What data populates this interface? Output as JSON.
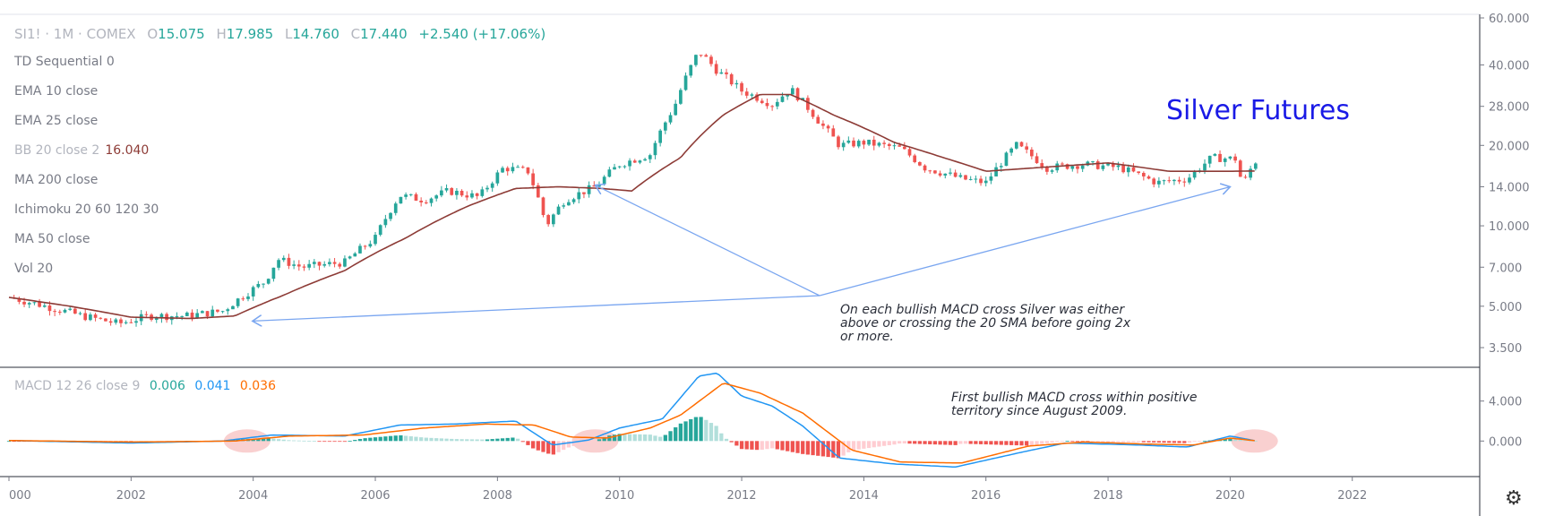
{
  "header": {
    "symbol": "SI1! · 1M · COMEX",
    "open_label": "O",
    "open": "15.075",
    "high_label": "H",
    "high": "17.985",
    "low_label": "L",
    "low": "14.760",
    "close_label": "C",
    "close": "17.440",
    "change": "+2.540 (+17.06%)"
  },
  "indicators": [
    {
      "label": "TD Sequential 0",
      "value": ""
    },
    {
      "label": "EMA 10 close",
      "value": ""
    },
    {
      "label": "EMA 25 close",
      "value": ""
    },
    {
      "label": "BB 20 close 2",
      "value": "16.040"
    },
    {
      "label": "MA 200 close",
      "value": ""
    },
    {
      "label": "Ichimoku 20 60 120 30",
      "value": ""
    },
    {
      "label": "MA 50 close",
      "value": ""
    },
    {
      "label": "Vol 20",
      "value": ""
    }
  ],
  "macd_legend": {
    "label": "MACD 12 26 close 9",
    "hist": "0.006",
    "macd": "0.041",
    "signal": "0.036"
  },
  "title_text": "Silver Futures",
  "note_main": [
    "On each bullish MACD cross Silver was either",
    "above or crossing the 20 SMA before going 2x",
    "or more."
  ],
  "note_macd": [
    "First bullish MACD cross within positive",
    "territory since August 2009."
  ],
  "colors": {
    "up": "#26a69a",
    "down": "#ef5350",
    "ma": "#8d3b36",
    "macd_line": "#2196f3",
    "signal_line": "#ff6d00",
    "hist_up_strong": "#26a69a",
    "hist_up_weak": "#b2dfdb",
    "hist_down_strong": "#ef5350",
    "hist_down_weak": "#ffcdd2",
    "arrow": "#7aa6f0",
    "title": "#1a1ae6",
    "highlight": "#f8c8c8"
  },
  "chart_data": [
    {
      "type": "candlestick",
      "title": "Silver Futures",
      "y_scale": "log",
      "y_ticks": [
        "60.000",
        "40.000",
        "28.000",
        "20.000",
        "14.000",
        "10.000",
        "7.000",
        "5.000",
        "3.500"
      ],
      "y_tick_values": [
        60,
        40,
        28,
        20,
        14,
        10,
        7,
        5,
        3.5
      ],
      "x_ticks": [
        "000",
        "2002",
        "2004",
        "2006",
        "2008",
        "2010",
        "2012",
        "2014",
        "2016",
        "2018",
        "2020",
        "2022"
      ],
      "x_range": [
        2000.0,
        2023.5
      ],
      "y_range": [
        3.0,
        60.0
      ],
      "price_path": [
        {
          "t": 2000.0,
          "v": 5.4
        },
        {
          "t": 2000.6,
          "v": 5.0
        },
        {
          "t": 2001.2,
          "v": 4.6
        },
        {
          "t": 2001.8,
          "v": 4.3
        },
        {
          "t": 2002.3,
          "v": 4.6
        },
        {
          "t": 2002.9,
          "v": 4.6
        },
        {
          "t": 2003.5,
          "v": 4.8
        },
        {
          "t": 2004.2,
          "v": 6.2
        },
        {
          "t": 2004.4,
          "v": 7.5
        },
        {
          "t": 2004.8,
          "v": 7.0
        },
        {
          "t": 2005.5,
          "v": 7.3
        },
        {
          "t": 2006.0,
          "v": 9.0
        },
        {
          "t": 2006.4,
          "v": 13.0
        },
        {
          "t": 2006.8,
          "v": 12.5
        },
        {
          "t": 2007.2,
          "v": 13.5
        },
        {
          "t": 2007.7,
          "v": 12.8
        },
        {
          "t": 2008.1,
          "v": 16.5
        },
        {
          "t": 2008.5,
          "v": 16.0
        },
        {
          "t": 2008.8,
          "v": 10.0
        },
        {
          "t": 2009.1,
          "v": 12.5
        },
        {
          "t": 2009.6,
          "v": 14.0
        },
        {
          "t": 2010.0,
          "v": 17.0
        },
        {
          "t": 2010.5,
          "v": 18.5
        },
        {
          "t": 2010.9,
          "v": 28.0
        },
        {
          "t": 2011.3,
          "v": 45.0
        },
        {
          "t": 2011.6,
          "v": 38.0
        },
        {
          "t": 2012.0,
          "v": 32.0
        },
        {
          "t": 2012.5,
          "v": 28.5
        },
        {
          "t": 2012.8,
          "v": 32.5
        },
        {
          "t": 2013.3,
          "v": 24.0
        },
        {
          "t": 2013.6,
          "v": 20.0
        },
        {
          "t": 2014.0,
          "v": 20.5
        },
        {
          "t": 2014.6,
          "v": 19.5
        },
        {
          "t": 2015.0,
          "v": 16.5
        },
        {
          "t": 2015.6,
          "v": 15.0
        },
        {
          "t": 2016.0,
          "v": 14.5
        },
        {
          "t": 2016.5,
          "v": 20.0
        },
        {
          "t": 2017.0,
          "v": 16.5
        },
        {
          "t": 2017.6,
          "v": 17.0
        },
        {
          "t": 2018.2,
          "v": 16.5
        },
        {
          "t": 2018.8,
          "v": 14.5
        },
        {
          "t": 2019.3,
          "v": 15.0
        },
        {
          "t": 2019.7,
          "v": 18.0
        },
        {
          "t": 2020.1,
          "v": 17.8
        },
        {
          "t": 2020.2,
          "v": 14.0
        },
        {
          "t": 2020.4,
          "v": 17.44
        }
      ],
      "ma_path": [
        {
          "t": 2000.0,
          "v": 5.4
        },
        {
          "t": 2001.0,
          "v": 5.0
        },
        {
          "t": 2002.0,
          "v": 4.55
        },
        {
          "t": 2003.0,
          "v": 4.5
        },
        {
          "t": 2003.7,
          "v": 4.6
        },
        {
          "t": 2004.5,
          "v": 5.5
        },
        {
          "t": 2005.5,
          "v": 6.8
        },
        {
          "t": 2006.5,
          "v": 9.0
        },
        {
          "t": 2007.5,
          "v": 11.8
        },
        {
          "t": 2008.3,
          "v": 13.8
        },
        {
          "t": 2009.0,
          "v": 14.0
        },
        {
          "t": 2009.7,
          "v": 13.8
        },
        {
          "t": 2010.2,
          "v": 13.5
        },
        {
          "t": 2011.0,
          "v": 18.0
        },
        {
          "t": 2011.7,
          "v": 26.0
        },
        {
          "t": 2012.3,
          "v": 31.0
        },
        {
          "t": 2012.8,
          "v": 31.0
        },
        {
          "t": 2013.5,
          "v": 26.0
        },
        {
          "t": 2014.5,
          "v": 20.5
        },
        {
          "t": 2015.3,
          "v": 18.0
        },
        {
          "t": 2016.0,
          "v": 16.0
        },
        {
          "t": 2017.0,
          "v": 16.6
        },
        {
          "t": 2018.0,
          "v": 17.2
        },
        {
          "t": 2019.0,
          "v": 16.0
        },
        {
          "t": 2020.0,
          "v": 16.0
        },
        {
          "t": 2020.4,
          "v": 16.04
        }
      ]
    },
    {
      "type": "line",
      "title": "MACD 12 26 close 9",
      "y_ticks": [
        "4.000",
        "0.000"
      ],
      "y_tick_values": [
        4,
        0
      ],
      "y_range": [
        -3.2,
        7.2
      ],
      "series": [
        {
          "name": "MACD",
          "points": [
            {
              "t": 2000.0,
              "v": 0.05
            },
            {
              "t": 2002.0,
              "v": -0.2
            },
            {
              "t": 2003.5,
              "v": 0.0
            },
            {
              "t": 2004.3,
              "v": 0.6
            },
            {
              "t": 2005.5,
              "v": 0.5
            },
            {
              "t": 2006.4,
              "v": 1.6
            },
            {
              "t": 2007.3,
              "v": 1.7
            },
            {
              "t": 2008.3,
              "v": 2.0
            },
            {
              "t": 2008.9,
              "v": -0.4
            },
            {
              "t": 2009.5,
              "v": 0.1
            },
            {
              "t": 2010.0,
              "v": 1.3
            },
            {
              "t": 2010.7,
              "v": 2.2
            },
            {
              "t": 2011.3,
              "v": 6.5
            },
            {
              "t": 2011.6,
              "v": 6.8
            },
            {
              "t": 2012.0,
              "v": 4.5
            },
            {
              "t": 2012.5,
              "v": 3.5
            },
            {
              "t": 2013.0,
              "v": 1.5
            },
            {
              "t": 2013.6,
              "v": -1.7
            },
            {
              "t": 2014.5,
              "v": -2.3
            },
            {
              "t": 2015.5,
              "v": -2.6
            },
            {
              "t": 2016.6,
              "v": -1.1
            },
            {
              "t": 2017.3,
              "v": -0.2
            },
            {
              "t": 2018.5,
              "v": -0.4
            },
            {
              "t": 2019.3,
              "v": -0.6
            },
            {
              "t": 2020.0,
              "v": 0.5
            },
            {
              "t": 2020.4,
              "v": 0.041
            }
          ]
        },
        {
          "name": "Signal",
          "points": [
            {
              "t": 2000.0,
              "v": 0.05
            },
            {
              "t": 2002.0,
              "v": -0.1
            },
            {
              "t": 2003.7,
              "v": 0.0
            },
            {
              "t": 2004.6,
              "v": 0.5
            },
            {
              "t": 2005.8,
              "v": 0.6
            },
            {
              "t": 2006.8,
              "v": 1.3
            },
            {
              "t": 2007.8,
              "v": 1.7
            },
            {
              "t": 2008.6,
              "v": 1.6
            },
            {
              "t": 2009.2,
              "v": 0.4
            },
            {
              "t": 2009.8,
              "v": 0.3
            },
            {
              "t": 2010.5,
              "v": 1.3
            },
            {
              "t": 2011.0,
              "v": 2.6
            },
            {
              "t": 2011.7,
              "v": 5.8
            },
            {
              "t": 2012.3,
              "v": 4.8
            },
            {
              "t": 2013.0,
              "v": 2.8
            },
            {
              "t": 2013.8,
              "v": -0.9
            },
            {
              "t": 2014.6,
              "v": -2.1
            },
            {
              "t": 2015.6,
              "v": -2.2
            },
            {
              "t": 2016.7,
              "v": -0.5
            },
            {
              "t": 2017.6,
              "v": -0.1
            },
            {
              "t": 2018.6,
              "v": -0.3
            },
            {
              "t": 2019.4,
              "v": -0.4
            },
            {
              "t": 2020.0,
              "v": 0.3
            },
            {
              "t": 2020.4,
              "v": 0.036
            }
          ]
        }
      ],
      "histogram_range": [
        {
          "from": 2000.0,
          "to": 2020.4
        }
      ]
    }
  ]
}
